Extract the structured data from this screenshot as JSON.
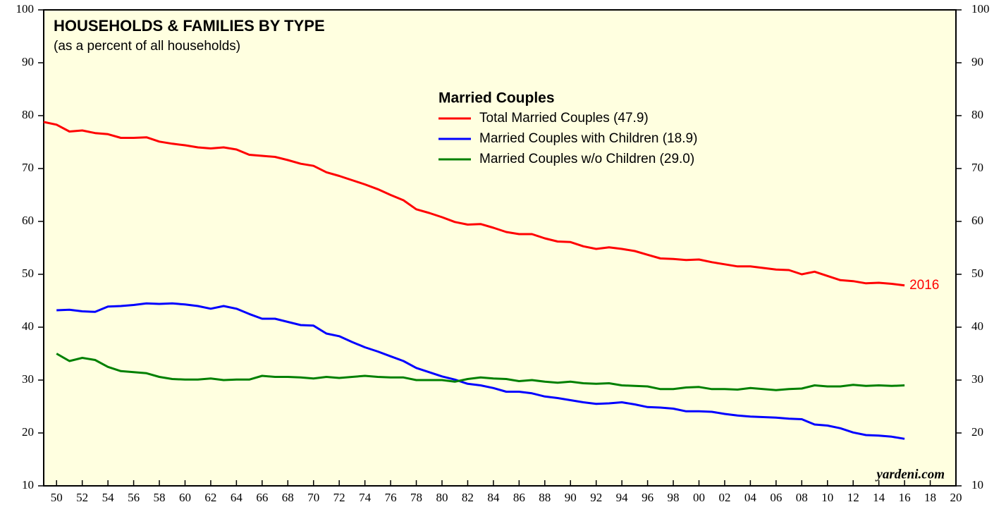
{
  "chart_data": {
    "type": "line",
    "title": "HOUSEHOLDS & FAMILIES BY TYPE",
    "subtitle": "(as a percent of all households)",
    "legend_title": "Married Couples",
    "annotation": "2016",
    "source": "yardeni.com",
    "x": [
      1949,
      1950,
      1951,
      1952,
      1953,
      1954,
      1955,
      1956,
      1957,
      1958,
      1959,
      1960,
      1961,
      1962,
      1963,
      1964,
      1965,
      1966,
      1967,
      1968,
      1969,
      1970,
      1971,
      1972,
      1973,
      1974,
      1975,
      1976,
      1977,
      1978,
      1979,
      1980,
      1981,
      1982,
      1983,
      1984,
      1985,
      1986,
      1987,
      1988,
      1989,
      1990,
      1991,
      1992,
      1993,
      1994,
      1995,
      1996,
      1997,
      1998,
      1999,
      2000,
      2001,
      2002,
      2003,
      2004,
      2005,
      2006,
      2007,
      2008,
      2009,
      2010,
      2011,
      2012,
      2013,
      2014,
      2015,
      2016
    ],
    "series": [
      {
        "name": "Total Married Couples (47.9)",
        "color": "#ff0000",
        "values": [
          78.8,
          78.3,
          77.0,
          77.2,
          76.7,
          76.5,
          75.8,
          75.8,
          75.9,
          75.1,
          74.7,
          74.4,
          74.0,
          73.8,
          74.0,
          73.6,
          72.6,
          72.4,
          72.2,
          71.6,
          70.9,
          70.5,
          69.3,
          68.6,
          67.8,
          67.0,
          66.1,
          65.0,
          64.0,
          62.3,
          61.6,
          60.8,
          59.9,
          59.4,
          59.5,
          58.8,
          58.0,
          57.6,
          57.6,
          56.8,
          56.2,
          56.1,
          55.3,
          54.8,
          55.1,
          54.8,
          54.4,
          53.7,
          53.0,
          52.9,
          52.7,
          52.8,
          52.3,
          51.9,
          51.5,
          51.5,
          51.2,
          50.9,
          50.8,
          50.0,
          50.5,
          49.7,
          48.9,
          48.7,
          48.3,
          48.4,
          48.2,
          47.9
        ]
      },
      {
        "name": "Married Couples with Children (18.9)",
        "color": "#0000ff",
        "values": [
          null,
          43.2,
          43.3,
          43.0,
          42.9,
          43.9,
          44.0,
          44.2,
          44.5,
          44.4,
          44.5,
          44.3,
          44.0,
          43.5,
          44.0,
          43.5,
          42.5,
          41.6,
          41.6,
          41.0,
          40.4,
          40.3,
          38.8,
          38.3,
          37.2,
          36.2,
          35.4,
          34.5,
          33.6,
          32.3,
          31.5,
          30.7,
          30.1,
          29.3,
          29.0,
          28.5,
          27.8,
          27.8,
          27.5,
          26.9,
          26.6,
          26.2,
          25.8,
          25.5,
          25.6,
          25.8,
          25.4,
          24.9,
          24.8,
          24.6,
          24.1,
          24.1,
          24.0,
          23.6,
          23.3,
          23.1,
          23.0,
          22.9,
          22.7,
          22.6,
          21.6,
          21.4,
          20.9,
          20.1,
          19.6,
          19.5,
          19.3,
          18.9
        ]
      },
      {
        "name": "Married Couples w/o Children (29.0)",
        "color": "#008000",
        "values": [
          null,
          35.0,
          33.6,
          34.2,
          33.8,
          32.5,
          31.7,
          31.5,
          31.3,
          30.6,
          30.2,
          30.1,
          30.1,
          30.3,
          30.0,
          30.1,
          30.1,
          30.8,
          30.6,
          30.6,
          30.5,
          30.3,
          30.6,
          30.4,
          30.6,
          30.8,
          30.6,
          30.5,
          30.5,
          30.0,
          30.0,
          30.0,
          29.7,
          30.2,
          30.5,
          30.3,
          30.2,
          29.8,
          30.0,
          29.7,
          29.5,
          29.7,
          29.4,
          29.3,
          29.4,
          29.0,
          28.9,
          28.8,
          28.3,
          28.3,
          28.6,
          28.7,
          28.3,
          28.3,
          28.2,
          28.5,
          28.3,
          28.1,
          28.3,
          28.4,
          29.0,
          28.8,
          28.8,
          29.1,
          28.9,
          29.0,
          28.9,
          29.0
        ]
      }
    ],
    "xlim": [
      1949,
      2020
    ],
    "xticks": [
      {
        "value": 1950,
        "label": "50"
      },
      {
        "value": 1952,
        "label": "52"
      },
      {
        "value": 1954,
        "label": "54"
      },
      {
        "value": 1956,
        "label": "56"
      },
      {
        "value": 1958,
        "label": "58"
      },
      {
        "value": 1960,
        "label": "60"
      },
      {
        "value": 1962,
        "label": "62"
      },
      {
        "value": 1964,
        "label": "64"
      },
      {
        "value": 1966,
        "label": "66"
      },
      {
        "value": 1968,
        "label": "68"
      },
      {
        "value": 1970,
        "label": "70"
      },
      {
        "value": 1972,
        "label": "72"
      },
      {
        "value": 1974,
        "label": "74"
      },
      {
        "value": 1976,
        "label": "76"
      },
      {
        "value": 1978,
        "label": "78"
      },
      {
        "value": 1980,
        "label": "80"
      },
      {
        "value": 1982,
        "label": "82"
      },
      {
        "value": 1984,
        "label": "84"
      },
      {
        "value": 1986,
        "label": "86"
      },
      {
        "value": 1988,
        "label": "88"
      },
      {
        "value": 1990,
        "label": "90"
      },
      {
        "value": 1992,
        "label": "92"
      },
      {
        "value": 1994,
        "label": "94"
      },
      {
        "value": 1996,
        "label": "96"
      },
      {
        "value": 1998,
        "label": "98"
      },
      {
        "value": 2000,
        "label": "00"
      },
      {
        "value": 2002,
        "label": "02"
      },
      {
        "value": 2004,
        "label": "04"
      },
      {
        "value": 2006,
        "label": "06"
      },
      {
        "value": 2008,
        "label": "08"
      },
      {
        "value": 2010,
        "label": "10"
      },
      {
        "value": 2012,
        "label": "12"
      },
      {
        "value": 2014,
        "label": "14"
      },
      {
        "value": 2016,
        "label": "16"
      },
      {
        "value": 2018,
        "label": "18"
      },
      {
        "value": 2020,
        "label": "20"
      }
    ],
    "ylim": [
      10,
      100
    ],
    "yticks": [
      10,
      20,
      30,
      40,
      50,
      60,
      70,
      80,
      90,
      100
    ],
    "y2lim": [
      10,
      100
    ],
    "y2ticks": [
      10,
      20,
      30,
      40,
      50,
      60,
      70,
      80,
      90,
      100
    ],
    "background": "#ffffe0"
  }
}
